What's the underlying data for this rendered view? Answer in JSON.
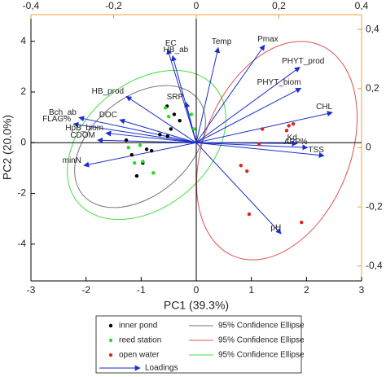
{
  "chart_data": {
    "type": "scatter",
    "x_label": "PC1 (39.3%)",
    "y_label": "PC2 (20.0%)",
    "xlim": [
      -3,
      3
    ],
    "ylim": [
      -5.45,
      5.05
    ],
    "xticks": [
      -3,
      -2,
      -1,
      0,
      1,
      2,
      3
    ],
    "yticks": [
      -4,
      -2,
      0,
      2,
      4
    ],
    "x2lim": [
      -0.4,
      0.4
    ],
    "x2ticks": [
      {
        "value": -0.4,
        "label": "-0,4"
      },
      {
        "value": -0.2,
        "label": "-0,2"
      },
      0,
      {
        "value": 0.2,
        "label": "0,2"
      },
      {
        "value": 0.4,
        "label": "0,4"
      }
    ],
    "y2lim": [
      -0.45,
      0.45
    ],
    "y2ticks": [
      {
        "value": -0.4,
        "label": "-0,4"
      },
      {
        "value": -0.2,
        "label": "-0,2"
      },
      0,
      {
        "value": 0.2,
        "label": "0,2"
      },
      {
        "value": 0.4,
        "label": "0,4"
      }
    ],
    "axis2_color": "#f0a030",
    "series": [
      {
        "name": "inner pond",
        "color": "#000000",
        "x": [
          -0.53,
          -0.4,
          -0.3,
          -0.46,
          -0.81,
          -0.97,
          -1.08,
          -1.17,
          -1.27,
          -0.52,
          -0.66,
          -0.9
        ],
        "values": [
          1.44,
          1.12,
          0.87,
          0.54,
          -0.32,
          -0.8,
          -1.31,
          -0.48,
          0.1,
          0.26,
          0.32,
          -0.26
        ]
      },
      {
        "name": "reed station",
        "color": "#22dd22",
        "x": [
          -0.56,
          -0.04,
          -0.09,
          -1.02,
          -1.23,
          -1.12,
          -0.97,
          -0.5,
          -0.78
        ],
        "values": [
          1.38,
          0.54,
          1.12,
          -0.1,
          -0.19,
          -0.8,
          -0.74,
          1.03,
          -1.19
        ]
      },
      {
        "name": "open water",
        "color": "#dd2222",
        "x": [
          1.2,
          1.68,
          1.76,
          1.64,
          1.14,
          0.81,
          0.92,
          0.96,
          1.91
        ],
        "values": [
          0.54,
          0.67,
          0.74,
          0.48,
          -0.06,
          -0.9,
          -1.12,
          -2.82,
          -3.14
        ]
      }
    ],
    "ellipses": [
      {
        "name": "95% Confidence Ellipse",
        "color": "#777777"
      },
      {
        "name": "95% Confidence Ellipse",
        "color": "#e05050"
      },
      {
        "name": "95% Confidence Ellipse",
        "color": "#44dd44"
      }
    ],
    "loadings": {
      "name": "Loadings",
      "color": "#1a2ecc",
      "labels": [
        "Temp",
        "Pmax",
        "EC",
        "HB_ab",
        "PHYT_prod",
        "PHYT_biom",
        "CHL",
        "Kd",
        "APP%",
        "TSS",
        "pH",
        "SRP",
        "HB_prod",
        "DOC",
        "Bch_ab",
        "FLAG%",
        "HpB_biom",
        "CDOM",
        "minN"
      ],
      "x": [
        0.4,
        1.24,
        -0.52,
        -0.43,
        1.88,
        1.9,
        2.47,
        1.83,
        2.02,
        2.32,
        1.54,
        -0.19,
        -1.27,
        -1.39,
        -2.13,
        -2.23,
        -1.64,
        -1.79,
        -2.04
      ],
      "y": [
        3.75,
        3.85,
        3.69,
        3.43,
        2.98,
        2.15,
        1.19,
        -0.03,
        -0.19,
        -0.51,
        -3.59,
        1.6,
        1.83,
        0.9,
        0.99,
        0.74,
        0.38,
        0.1,
        -0.9
      ]
    }
  }
}
